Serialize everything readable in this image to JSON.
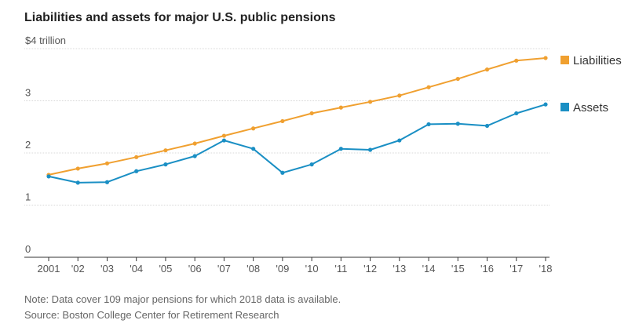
{
  "chart_data": {
    "type": "line",
    "title": "Liabilities and assets for major U.S. public pensions",
    "y_unit_label": "$4 trillion",
    "x": [
      "2001",
      "'02",
      "'03",
      "'04",
      "'05",
      "'06",
      "'07",
      "'08",
      "'09",
      "'10",
      "'11",
      "'12",
      "'13",
      "'14",
      "'15",
      "'16",
      "'17",
      "'18"
    ],
    "ylim": [
      0,
      4
    ],
    "yticks": [
      {
        "value": 0,
        "label": "0"
      },
      {
        "value": 1,
        "label": "1"
      },
      {
        "value": 2,
        "label": "2"
      },
      {
        "value": 3,
        "label": "3"
      },
      {
        "value": 4,
        "label": "$4 trillion"
      }
    ],
    "grid": true,
    "legend_position": "right",
    "series": [
      {
        "name": "Liabilities",
        "color": "#f0a030",
        "values": [
          1.58,
          1.7,
          1.8,
          1.92,
          2.05,
          2.18,
          2.33,
          2.47,
          2.61,
          2.76,
          2.87,
          2.98,
          3.1,
          3.26,
          3.42,
          3.6,
          3.77,
          3.82
        ]
      },
      {
        "name": "Assets",
        "color": "#1a8fc4",
        "values": [
          1.55,
          1.43,
          1.44,
          1.65,
          1.78,
          1.94,
          2.24,
          2.08,
          1.62,
          1.78,
          2.08,
          2.06,
          2.24,
          2.55,
          2.56,
          2.52,
          2.76,
          2.93
        ]
      }
    ]
  },
  "notes": {
    "note": "Note: Data cover 109 major pensions for which 2018 data is available.",
    "source": "Source: Boston College Center for Retirement Research"
  }
}
